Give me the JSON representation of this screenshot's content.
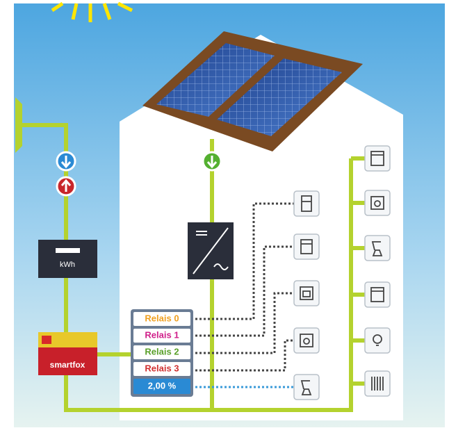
{
  "meter": {
    "label": "kWh"
  },
  "controller": {
    "label": "smartfox"
  },
  "relays": [
    "Relais 0",
    "Relais 1",
    "Relais 2",
    "Relais 3"
  ],
  "output": "2,00 %"
}
